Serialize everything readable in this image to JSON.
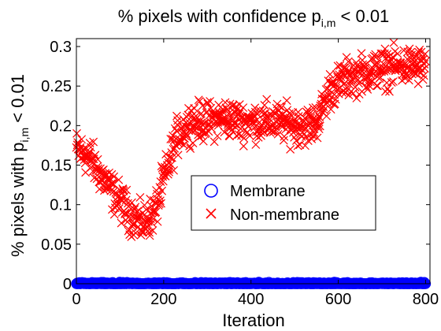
{
  "chart_data": {
    "type": "scatter",
    "title": {
      "main": "% pixels with confidence p",
      "sub": "i,m",
      "tail": " < 0.01"
    },
    "xlabel": "Iteration",
    "ylabel": {
      "main": "% pixels with p",
      "sub": "i,m",
      "tail": " < 0.01"
    },
    "xlim": [
      0,
      810
    ],
    "ylim": [
      0,
      0.31
    ],
    "xticks": [
      0,
      200,
      400,
      600,
      800
    ],
    "xtick_labels": [
      "0",
      "200",
      "400",
      "600",
      "800"
    ],
    "yticks": [
      0,
      0.05,
      0.1,
      0.15,
      0.2,
      0.25,
      0.3
    ],
    "ytick_labels": [
      "0",
      "0.05",
      "0.1",
      "0.15",
      "0.2",
      "0.25",
      "0.3"
    ],
    "grid": false,
    "legend_position": "center",
    "series": [
      {
        "name": "Membrane",
        "marker": "circle",
        "color": "#0000ff",
        "x_range": [
          0,
          800
        ],
        "x_step": 1,
        "profile": [
          [
            0,
            0.0
          ],
          [
            800,
            0.0
          ]
        ],
        "jitter": 0.0008
      },
      {
        "name": "Non-membrane",
        "marker": "x",
        "color": "#ff0000",
        "x_range": [
          0,
          800
        ],
        "x_step": 1,
        "profile": [
          [
            0,
            0.17
          ],
          [
            30,
            0.16
          ],
          [
            60,
            0.135
          ],
          [
            90,
            0.11
          ],
          [
            120,
            0.09
          ],
          [
            150,
            0.075
          ],
          [
            180,
            0.09
          ],
          [
            200,
            0.13
          ],
          [
            230,
            0.185
          ],
          [
            260,
            0.205
          ],
          [
            300,
            0.205
          ],
          [
            340,
            0.21
          ],
          [
            380,
            0.205
          ],
          [
            420,
            0.205
          ],
          [
            460,
            0.205
          ],
          [
            500,
            0.2
          ],
          [
            540,
            0.2
          ],
          [
            560,
            0.215
          ],
          [
            580,
            0.245
          ],
          [
            620,
            0.26
          ],
          [
            680,
            0.27
          ],
          [
            740,
            0.275
          ],
          [
            800,
            0.275
          ]
        ],
        "jitter": 0.012
      }
    ]
  }
}
